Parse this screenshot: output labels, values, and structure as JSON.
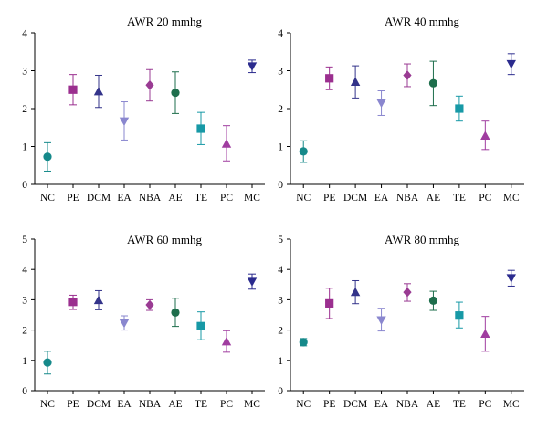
{
  "colors": {
    "NC": "#15898a",
    "PE": "#9b2f8f",
    "DCM": "#33338a",
    "EA": "#8a87cf",
    "NBA": "#9a3b93",
    "AE": "#1e6e4c",
    "TE": "#1799a6",
    "PC": "#a03da0",
    "MC": "#2b2b8e"
  },
  "markers": {
    "NC": "circle",
    "PE": "square",
    "DCM": "triangle-up",
    "EA": "triangle-down",
    "NBA": "diamond",
    "AE": "circle",
    "TE": "square",
    "PC": "triangle-up",
    "MC": "triangle-down"
  },
  "chart_data": [
    {
      "type": "scatter",
      "title": "AWR 20 mmhg",
      "categories": [
        "NC",
        "PE",
        "DCM",
        "EA",
        "NBA",
        "AE",
        "TE",
        "PC",
        "MC"
      ],
      "values": [
        0.73,
        2.5,
        2.45,
        1.67,
        2.62,
        2.42,
        1.47,
        1.07,
        3.12
      ],
      "error_low": [
        0.35,
        2.1,
        2.03,
        1.17,
        2.2,
        1.87,
        1.05,
        0.62,
        2.95
      ],
      "error_high": [
        1.1,
        2.9,
        2.88,
        2.18,
        3.03,
        2.97,
        1.9,
        1.55,
        3.28
      ],
      "yticks": [
        "0",
        "1",
        "2",
        "3",
        "4"
      ],
      "ylim": [
        0,
        4
      ]
    },
    {
      "type": "scatter",
      "title": "AWR 40 mmhg",
      "categories": [
        "NC",
        "PE",
        "DCM",
        "EA",
        "NBA",
        "AE",
        "TE",
        "PC",
        "MC"
      ],
      "values": [
        0.87,
        2.8,
        2.7,
        2.15,
        2.88,
        2.67,
        2.0,
        1.28,
        3.18
      ],
      "error_low": [
        0.58,
        2.5,
        2.28,
        1.82,
        2.58,
        2.08,
        1.67,
        0.92,
        2.9
      ],
      "error_high": [
        1.15,
        3.1,
        3.13,
        2.47,
        3.18,
        3.25,
        2.33,
        1.67,
        3.45
      ],
      "yticks": [
        "0",
        "1",
        "2",
        "3",
        "4"
      ],
      "ylim": [
        0,
        4
      ]
    },
    {
      "type": "scatter",
      "title": "AWR 60 mmhg",
      "categories": [
        "NC",
        "PE",
        "DCM",
        "EA",
        "NBA",
        "AE",
        "TE",
        "PC",
        "MC"
      ],
      "values": [
        0.93,
        2.93,
        2.98,
        2.23,
        2.83,
        2.58,
        2.13,
        1.62,
        3.6
      ],
      "error_low": [
        0.55,
        2.68,
        2.67,
        2.0,
        2.65,
        2.12,
        1.68,
        1.27,
        3.35
      ],
      "error_high": [
        1.3,
        3.15,
        3.3,
        2.47,
        3.0,
        3.05,
        2.6,
        1.98,
        3.85
      ],
      "yticks": [
        "0",
        "1",
        "2",
        "3",
        "4",
        "5"
      ],
      "ylim": [
        0,
        5
      ]
    },
    {
      "type": "scatter",
      "title": "AWR 80 mmhg",
      "categories": [
        "NC",
        "PE",
        "DCM",
        "EA",
        "NBA",
        "AE",
        "TE",
        "PC",
        "MC"
      ],
      "values": [
        1.6,
        2.88,
        3.25,
        2.33,
        3.25,
        2.97,
        2.48,
        1.87,
        3.72
      ],
      "error_low": [
        1.48,
        2.38,
        2.87,
        1.97,
        2.95,
        2.65,
        2.07,
        1.3,
        3.45
      ],
      "error_high": [
        1.72,
        3.38,
        3.63,
        2.72,
        3.53,
        3.28,
        2.92,
        2.45,
        3.97
      ],
      "yticks": [
        "0",
        "1",
        "2",
        "3",
        "4",
        "5"
      ],
      "ylim": [
        0,
        5
      ]
    }
  ]
}
